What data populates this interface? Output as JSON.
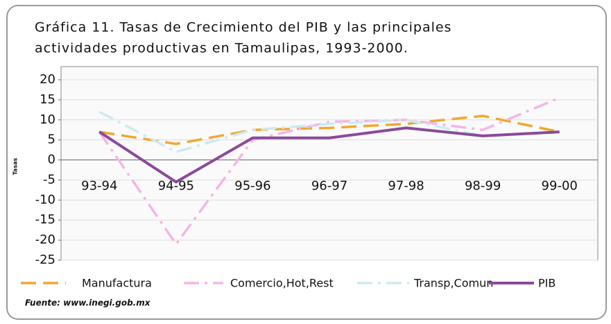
{
  "chart_data": {
    "type": "line",
    "title": "Gráfica 11. Tasas de Crecimiento del PIB y las principales",
    "subtitle": "actividades productivas en Tamaulipas, 1993-2000.",
    "y_label": "Tasas",
    "source": "Fuente: www.inegi.gob.mx",
    "categories": [
      "93-94",
      "94-95",
      "95-96",
      "96-97",
      "97-98",
      "98-99",
      "99-00"
    ],
    "series": [
      {
        "name": "Manufactura",
        "color": "#f0a830",
        "dash": "22 10",
        "values": [
          7,
          4,
          7.5,
          8,
          9,
          11,
          7
        ]
      },
      {
        "name": "Comercio,Hot,Rest",
        "color": "#f5b5e6",
        "dash": "22 8 4 8",
        "values": [
          7,
          -21,
          5,
          9.5,
          10,
          7.5,
          15.5
        ]
      },
      {
        "name": "Transp,Comun",
        "color": "#cdeaf0",
        "dash": "22 8 4 8",
        "values": [
          12,
          2,
          7.5,
          9,
          10,
          6,
          7
        ]
      },
      {
        "name": "PIB",
        "color": "#8a4a9a",
        "dash": "none",
        "values": [
          7,
          -5.5,
          5.5,
          5.5,
          8,
          6,
          7
        ]
      }
    ],
    "ylim": [
      -25,
      20
    ],
    "yticks": [
      -25,
      -20,
      -15,
      -10,
      -5,
      0,
      5,
      10,
      15,
      20
    ],
    "grid": true
  }
}
